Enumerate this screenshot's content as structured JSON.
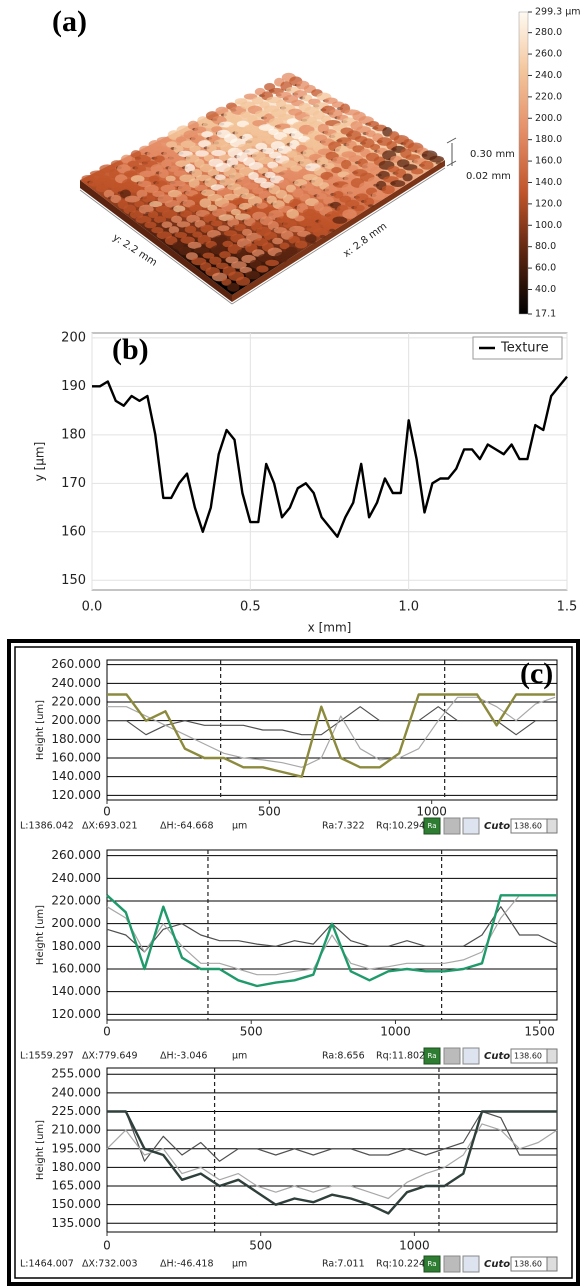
{
  "chart_data": [
    {
      "type": "surface",
      "label": "(a)",
      "x_label": "x: 2.8 mm",
      "y_label": "y: 2.2 mm",
      "z_labels": [
        "0.30 mm",
        "0.02 mm"
      ],
      "colors": [
        "#000000",
        "#5a2410",
        "#c0542a",
        "#e48c66",
        "#f3c49a",
        "#fffaf2"
      ],
      "clim": [
        17.1,
        299.3
      ],
      "cticks": [
        {
          "value": 299.3,
          "label": "299.3 µm"
        },
        {
          "value": 280,
          "label": "280.0"
        },
        {
          "value": 260,
          "label": "260.0"
        },
        {
          "value": 240,
          "label": "240.0"
        },
        {
          "value": 220,
          "label": "220.0"
        },
        {
          "value": 200,
          "label": "200.0"
        },
        {
          "value": 180,
          "label": "180.0"
        },
        {
          "value": 160,
          "label": "160.0"
        },
        {
          "value": 140,
          "label": "140.0"
        },
        {
          "value": 120,
          "label": "120.0"
        },
        {
          "value": 100,
          "label": "100.0"
        },
        {
          "value": 80,
          "label": "80.0"
        },
        {
          "value": 60,
          "label": "60.0"
        },
        {
          "value": 40,
          "label": "40.0"
        },
        17.1
      ]
    },
    {
      "type": "line",
      "label": "(b)",
      "x_label": "x [mm]",
      "y_label": "y [µm]",
      "legend": "upper right",
      "grid": true,
      "x": [
        0,
        0.025,
        0.05,
        0.075,
        0.1,
        0.125,
        0.15,
        0.175,
        0.2,
        0.225,
        0.25,
        0.275,
        0.3,
        0.325,
        0.35,
        0.375,
        0.4,
        0.425,
        0.45,
        0.475,
        0.5,
        0.525,
        0.55,
        0.575,
        0.6,
        0.625,
        0.65,
        0.675,
        0.7,
        0.725,
        0.75,
        0.775,
        0.8,
        0.825,
        0.85,
        0.875,
        0.9,
        0.925,
        0.95,
        0.975,
        1.0,
        1.025,
        1.05,
        1.075,
        1.1,
        1.125,
        1.15,
        1.175,
        1.2,
        1.225,
        1.25,
        1.275,
        1.3,
        1.325,
        1.35,
        1.375,
        1.4,
        1.425,
        1.45,
        1.475,
        1.5
      ],
      "series": [
        {
          "name": "Texture",
          "color": "#000000",
          "values": [
            190,
            190,
            191,
            187,
            186,
            188,
            187,
            188,
            180,
            167,
            167,
            170,
            172,
            165,
            160,
            165,
            176,
            181,
            179,
            168,
            162,
            162,
            174,
            170,
            163,
            165,
            169,
            170,
            168,
            163,
            161,
            159,
            163,
            166,
            174,
            163,
            166,
            171,
            168,
            168,
            183,
            175,
            164,
            170,
            171,
            171,
            173,
            177,
            177,
            175,
            178,
            177,
            176,
            178,
            175,
            175,
            182,
            181,
            188,
            190,
            192
          ]
        }
      ],
      "xlim": [
        0,
        1.5
      ],
      "ylim": [
        148,
        201
      ],
      "xticks": [
        {
          "value": 0,
          "label": "0.0"
        },
        {
          "value": 0.5,
          "label": "0.5"
        },
        {
          "value": 1,
          "label": "1.0"
        },
        {
          "value": 1.5,
          "label": "1.5"
        }
      ],
      "yticks": [
        150,
        160,
        170,
        180,
        190,
        200
      ]
    },
    {
      "type": "line",
      "label": "(c)",
      "y_label": "Height [um]",
      "grid": true,
      "x": [
        0,
        60,
        120,
        180,
        240,
        300,
        360,
        420,
        480,
        540,
        600,
        660,
        720,
        780,
        840,
        900,
        960,
        1020,
        1080,
        1140,
        1200,
        1260,
        1320,
        1380
      ],
      "series": [
        {
          "color": "#8c8a3c",
          "values": [
            228,
            228,
            200,
            210,
            170,
            160,
            160,
            150,
            150,
            145,
            140,
            215,
            160,
            150,
            150,
            165,
            228,
            228,
            228,
            228,
            195,
            228,
            228,
            228
          ]
        },
        {
          "color": "#a8a8a8",
          "values": [
            215,
            215,
            205,
            195,
            185,
            175,
            165,
            160,
            158,
            155,
            150,
            160,
            205,
            170,
            158,
            160,
            170,
            200,
            225,
            225,
            215,
            200,
            218,
            225
          ]
        },
        {
          "color": "#505050",
          "values": [
            200,
            200,
            185,
            195,
            200,
            195,
            195,
            195,
            190,
            190,
            185,
            185,
            200,
            215,
            200,
            200,
            200,
            215,
            200,
            200,
            200,
            185,
            200,
            200
          ]
        }
      ],
      "cursors": [
        350,
        1040
      ],
      "xlim": [
        0,
        1386
      ],
      "ylim": [
        115,
        265
      ],
      "xticks": [
        0,
        500,
        1000
      ],
      "yticks": [
        {
          "value": 120,
          "label": "120.000"
        },
        {
          "value": 140,
          "label": "140.000"
        },
        {
          "value": 160,
          "label": "160.000"
        },
        {
          "value": 180,
          "label": "180.000"
        },
        {
          "value": 200,
          "label": "200.000"
        },
        {
          "value": 220,
          "label": "220.000"
        },
        {
          "value": 240,
          "label": "240.000"
        },
        {
          "value": 260,
          "label": "260.000"
        }
      ],
      "footer": [
        "L:1386.042",
        "ΔX:693.021",
        "ΔH:-64.668",
        "µm",
        "Ra:7.322",
        "Rq:10.294"
      ],
      "button": "Ra",
      "cutoff_label": "Cutoff:",
      "cutoff": "138.60"
    },
    {
      "type": "line",
      "y_label": "Height [um]",
      "grid": true,
      "x": [
        0,
        65,
        130,
        195,
        260,
        325,
        390,
        455,
        520,
        585,
        650,
        715,
        780,
        845,
        910,
        975,
        1040,
        1105,
        1170,
        1235,
        1300,
        1365,
        1430,
        1495,
        1560
      ],
      "series": [
        {
          "color": "#1f9a6a",
          "values": [
            225,
            210,
            160,
            215,
            170,
            160,
            160,
            150,
            145,
            148,
            150,
            155,
            200,
            158,
            150,
            158,
            160,
            158,
            158,
            160,
            165,
            225,
            225,
            225,
            225
          ]
        },
        {
          "color": "#a8a8a8",
          "values": [
            215,
            205,
            175,
            200,
            180,
            165,
            165,
            160,
            155,
            155,
            158,
            160,
            190,
            165,
            160,
            162,
            165,
            165,
            165,
            168,
            175,
            205,
            225,
            225,
            225
          ]
        },
        {
          "color": "#505050",
          "values": [
            195,
            190,
            175,
            195,
            200,
            190,
            185,
            185,
            182,
            180,
            185,
            182,
            200,
            185,
            180,
            180,
            185,
            180,
            180,
            180,
            190,
            215,
            190,
            190,
            182
          ]
        }
      ],
      "cursors": [
        350,
        1160
      ],
      "xlim": [
        0,
        1560
      ],
      "ylim": [
        115,
        265
      ],
      "xticks": [
        0,
        500,
        1000,
        1500
      ],
      "yticks": [
        {
          "value": 120,
          "label": "120.000"
        },
        {
          "value": 140,
          "label": "140.000"
        },
        {
          "value": 160,
          "label": "160.000"
        },
        {
          "value": 180,
          "label": "180.000"
        },
        {
          "value": 200,
          "label": "200.000"
        },
        {
          "value": 220,
          "label": "220.000"
        },
        {
          "value": 240,
          "label": "240.000"
        },
        {
          "value": 260,
          "label": "260.000"
        }
      ],
      "footer": [
        "L:1559.297",
        "ΔX:779.649",
        "ΔH:-3.046",
        "µm",
        "Ra:8.656",
        "Rq:11.802"
      ],
      "button": "Ra",
      "cutoff_label": "Cutoff:",
      "cutoff": "138.60"
    },
    {
      "type": "line",
      "y_label": "Height [um]",
      "grid": true,
      "x": [
        0,
        61,
        122,
        183,
        244,
        305,
        366,
        427,
        488,
        549,
        610,
        671,
        732,
        793,
        854,
        915,
        976,
        1037,
        1098,
        1159,
        1220,
        1281,
        1342,
        1403,
        1464
      ],
      "series": [
        {
          "color": "#2f3f3c",
          "values": [
            225,
            225,
            195,
            190,
            170,
            175,
            165,
            170,
            160,
            150,
            155,
            152,
            158,
            155,
            150,
            143,
            160,
            165,
            165,
            175,
            225,
            225,
            225,
            225,
            225
          ]
        },
        {
          "color": "#a8a8a8",
          "values": [
            195,
            210,
            190,
            195,
            175,
            180,
            170,
            175,
            165,
            160,
            165,
            160,
            165,
            165,
            160,
            155,
            168,
            175,
            180,
            190,
            215,
            210,
            195,
            200,
            210
          ]
        },
        {
          "color": "#505050",
          "values": [
            225,
            225,
            185,
            205,
            190,
            200,
            185,
            195,
            195,
            190,
            195,
            190,
            195,
            195,
            190,
            190,
            195,
            190,
            195,
            200,
            225,
            220,
            190,
            190,
            190
          ]
        }
      ],
      "cursors": [
        350,
        1080
      ],
      "xlim": [
        0,
        1464
      ],
      "ylim": [
        128,
        260
      ],
      "xticks": [
        0,
        500,
        1000
      ],
      "yticks": [
        {
          "value": 135,
          "label": "135.000"
        },
        {
          "value": 150,
          "label": "150.000"
        },
        {
          "value": 165,
          "label": "165.000"
        },
        {
          "value": 180,
          "label": "180.000"
        },
        {
          "value": 195,
          "label": "195.000"
        },
        {
          "value": 210,
          "label": "210.000"
        },
        {
          "value": 225,
          "label": "225.000"
        },
        {
          "value": 240,
          "label": "240.000"
        },
        {
          "value": 255,
          "label": "255.000"
        }
      ],
      "footer": [
        "L:1464.007",
        "ΔX:732.003",
        "ΔH:-46.418",
        "µm",
        "Ra:7.011",
        "Rq:10.224"
      ],
      "button": "Ra",
      "cutoff_label": "Cutoff:",
      "cutoff": "138.60"
    }
  ]
}
